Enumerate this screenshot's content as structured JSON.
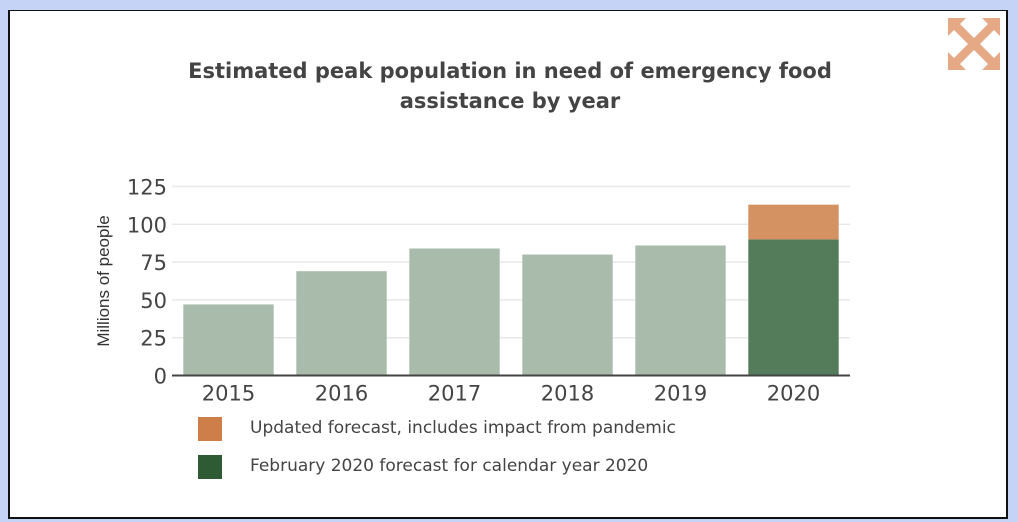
{
  "chart_data": {
    "type": "bar",
    "stacked": true,
    "title": "Estimated peak population in need of emergency food assistance by year",
    "xlabel": "",
    "ylabel": "Millions of people",
    "ylim": [
      0,
      125
    ],
    "yticks": [
      0,
      25,
      50,
      75,
      100,
      125
    ],
    "grid": true,
    "categories": [
      "2015",
      "2016",
      "2017",
      "2018",
      "2019",
      "2020"
    ],
    "series": [
      {
        "name": "",
        "values": [
          47,
          69,
          84,
          80,
          86,
          null
        ],
        "color": "#a9bcac"
      },
      {
        "name": "February 2020 forecast for calendar year 2020",
        "values": [
          null,
          null,
          null,
          null,
          null,
          90
        ],
        "color": "#547c5a"
      },
      {
        "name": "Updated forecast, includes impact from pandemic",
        "values": [
          null,
          null,
          null,
          null,
          null,
          23
        ],
        "color": "#d49162"
      }
    ],
    "legend": {
      "placement": "bottom-left",
      "items": [
        {
          "label": "Updated forecast, includes impact from pandemic",
          "color": "#ce7e48"
        },
        {
          "label": "February 2020 forecast for calendar year 2020",
          "color": "#2e5a34"
        }
      ]
    }
  },
  "controls": {
    "expand_icon": "expand-arrows-icon",
    "expand_color": "#e5aa85"
  }
}
